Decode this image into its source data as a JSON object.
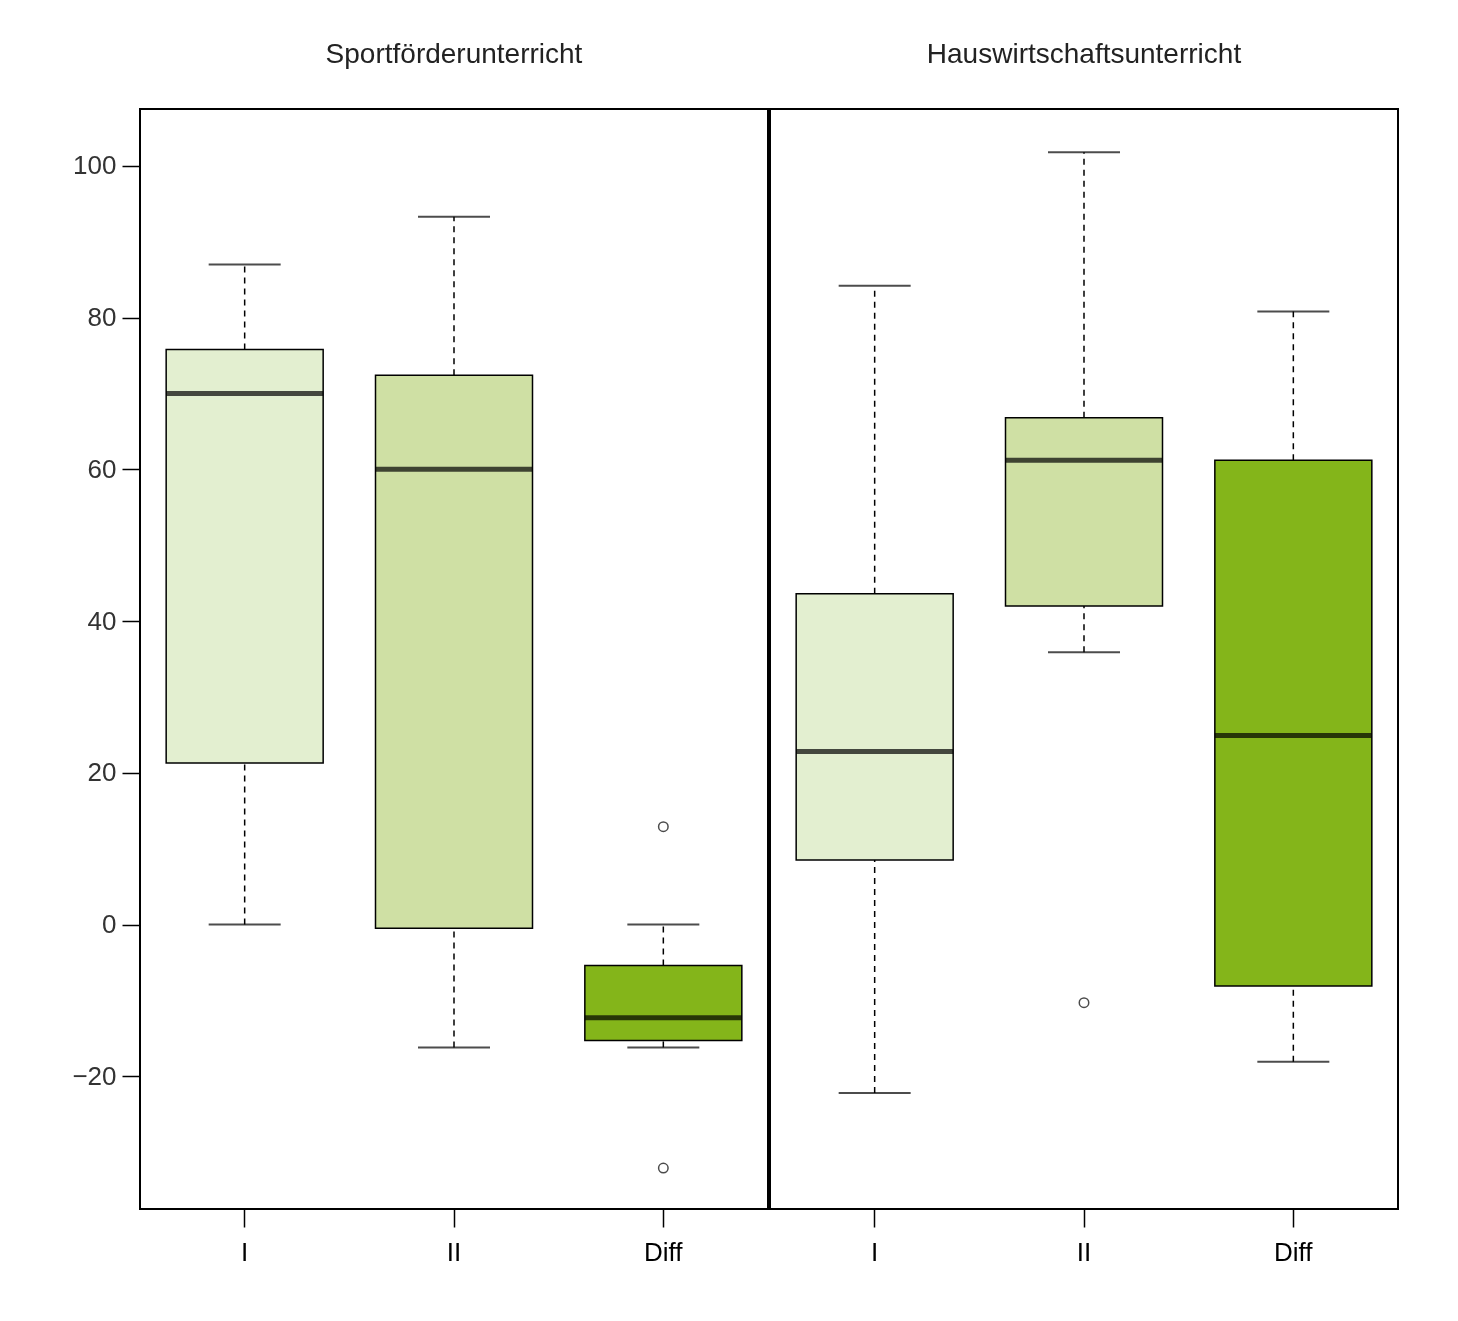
{
  "chart_data": [
    {
      "type": "box",
      "title": "Sportförderunterricht",
      "categories": [
        "I",
        "II",
        "Diff"
      ],
      "colors": [
        "#e3efd0",
        "#cfe0a4",
        "#84b51a"
      ],
      "ylim": [
        -37.5,
        107.5
      ],
      "yticks": [
        -20,
        0,
        20,
        40,
        60,
        80,
        100
      ],
      "boxes": [
        {
          "low": 0,
          "q1": 21.3,
          "median": 70,
          "q3": 75.8,
          "high": 87
        },
        {
          "low": -16.2,
          "q1": -0.5,
          "median": 60,
          "q3": 72.4,
          "high": 93.3
        },
        {
          "low": -16.2,
          "q1": -15.3,
          "median": -12.3,
          "q3": -5.4,
          "high": 0,
          "outliers": [
            12.9,
            -32.1
          ]
        }
      ]
    },
    {
      "type": "box",
      "title": "Hauswirtschaftsunterricht",
      "categories": [
        "I",
        "II",
        "Diff"
      ],
      "colors": [
        "#e3efd0",
        "#cfe0a4",
        "#84b51a"
      ],
      "ylim": [
        -37.5,
        107.5
      ],
      "yticks": [
        -20,
        0,
        20,
        40,
        60,
        80,
        100
      ],
      "tick_labels": "x",
      "boxes": [
        {
          "low": -22.2,
          "q1": 8.5,
          "median": 22.8,
          "q3": 43.6,
          "high": 84.2
        },
        {
          "low": 35.9,
          "q1": 42,
          "median": 61.2,
          "q3": 66.8,
          "high": 101.8,
          "outliers": [
            -10.3
          ]
        },
        {
          "low": -18.1,
          "q1": -8.1,
          "median": 24.9,
          "q3": 61.2,
          "high": 80.8
        }
      ]
    }
  ]
}
